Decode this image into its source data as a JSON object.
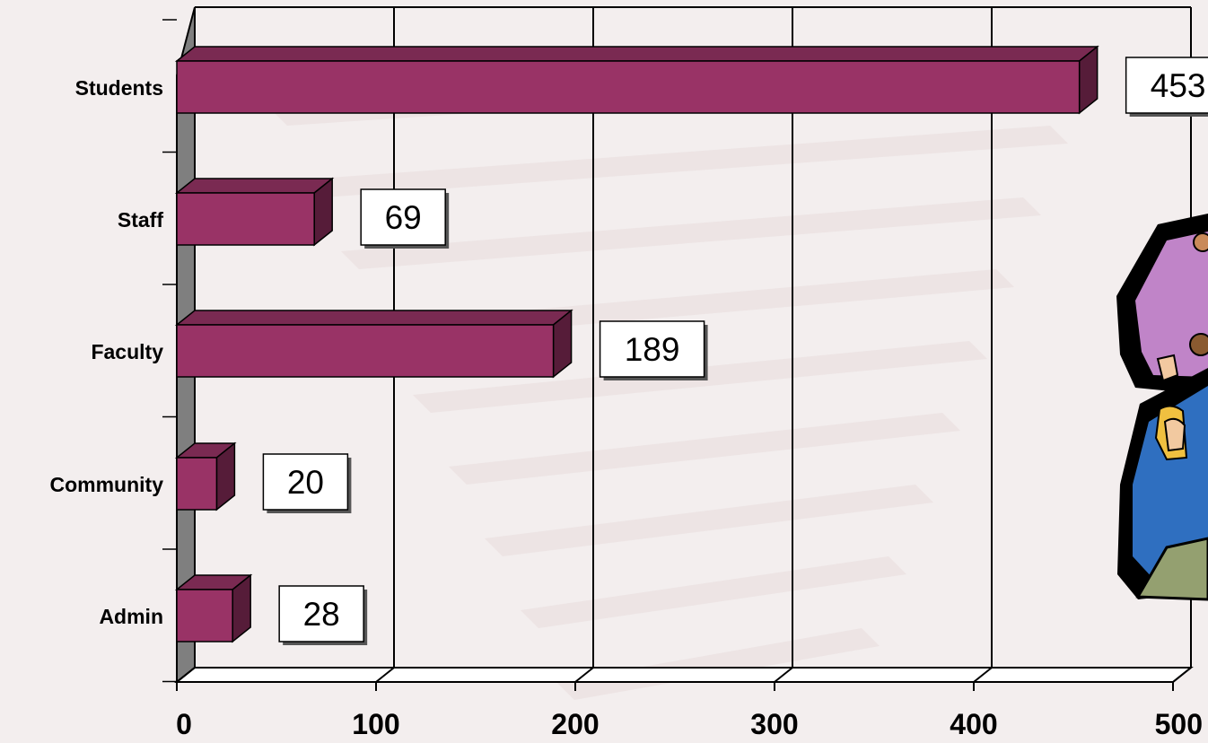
{
  "chart_data": {
    "type": "bar",
    "orientation": "horizontal",
    "style": "3d",
    "categories": [
      "Students",
      "Staff",
      "Faculty",
      "Community",
      "Admin"
    ],
    "values": [
      453,
      69,
      189,
      20,
      28
    ],
    "data_labels": [
      "453",
      "69",
      "189",
      "20",
      "28"
    ],
    "xlim": [
      0,
      500
    ],
    "x_ticks": [
      "0",
      "100",
      "200",
      "300",
      "400",
      "500"
    ],
    "title": "",
    "xlabel": "",
    "ylabel": "",
    "grid": true,
    "legend": "none",
    "colors": {
      "bar_front": "#993366",
      "bar_top": "#7a2a52",
      "bar_side": "#561c39",
      "wall": "#7f7f7f",
      "background": "#f3eeee",
      "watermark": "#e8dcdc"
    }
  },
  "decorations": {
    "clipart": "people-group-clipart-icon"
  }
}
